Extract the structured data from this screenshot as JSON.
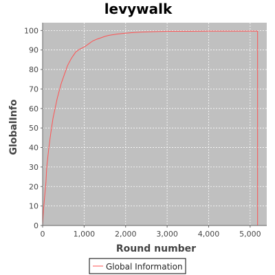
{
  "chart_data": {
    "type": "line",
    "title": "levywalk",
    "xlabel": "Round number",
    "ylabel": "GlobalInfo",
    "xlim": [
      0,
      5400
    ],
    "ylim": [
      0,
      104
    ],
    "x_ticks": [
      0,
      1000,
      2000,
      3000,
      4000,
      5000
    ],
    "x_tick_labels": [
      "0",
      "1,000",
      "2,000",
      "3,000",
      "4,000",
      "5,000"
    ],
    "y_ticks": [
      0,
      10,
      20,
      30,
      40,
      50,
      60,
      70,
      80,
      90,
      100
    ],
    "y_tick_labels": [
      "0",
      "10",
      "20",
      "30",
      "40",
      "50",
      "60",
      "70",
      "80",
      "90",
      "100"
    ],
    "grid": true,
    "legend_position": "bottom-center",
    "colors": {
      "plot_background": "#c0c0c0",
      "series": "#ff5050",
      "grid": "#ffffff"
    },
    "series": [
      {
        "name": "Global Information",
        "x": [
          0,
          20,
          50,
          80,
          100,
          150,
          200,
          250,
          300,
          350,
          400,
          450,
          500,
          550,
          600,
          650,
          700,
          750,
          800,
          900,
          1000,
          1100,
          1200,
          1300,
          1400,
          1500,
          1600,
          1800,
          2000,
          2200,
          2400,
          2700,
          3000,
          3500,
          4000,
          4500,
          5000,
          5180,
          5180
        ],
        "y": [
          0,
          8,
          15,
          22,
          30,
          40,
          48,
          55,
          60,
          65,
          69,
          73,
          76,
          79,
          82,
          84,
          86,
          87.5,
          89,
          90.5,
          91.5,
          93,
          94.5,
          95.5,
          96.2,
          97,
          97.5,
          98.2,
          98.6,
          99,
          99.2,
          99.4,
          99.6,
          99.6,
          99.7,
          99.7,
          99.7,
          99.7,
          0
        ]
      }
    ]
  }
}
